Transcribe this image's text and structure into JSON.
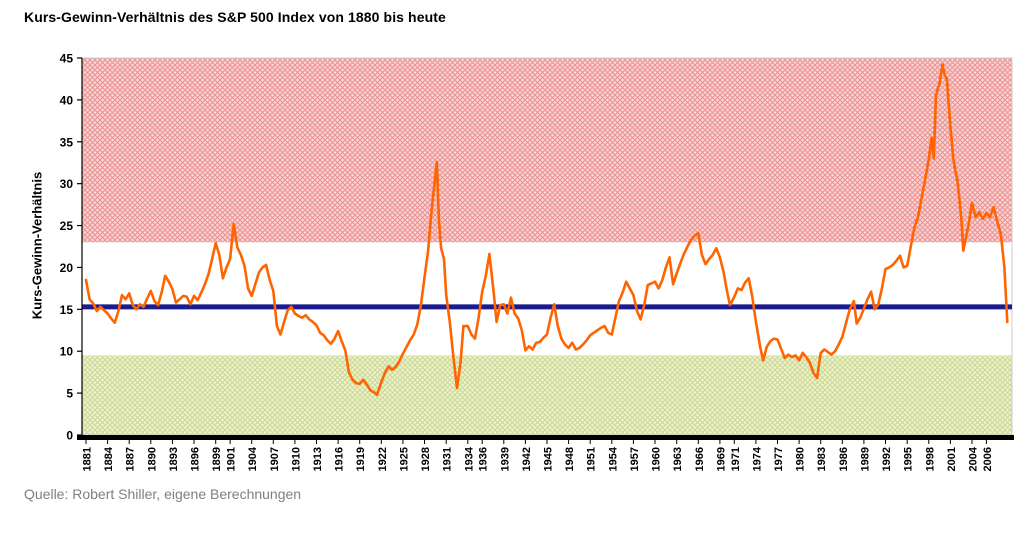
{
  "chart_data": {
    "type": "line",
    "title": "Kurs-Gewinn-Verhältnis des S&P 500 Index von 1880 bis heute",
    "ylabel": "Kurs-Gewinn-Verhältnis",
    "xlabel": "",
    "source": "Quelle: Robert Shiller, eigene Berechnungen",
    "ylim": [
      0,
      45
    ],
    "xlim": [
      1881,
      2009
    ],
    "yticks": [
      0,
      5,
      10,
      15,
      20,
      25,
      30,
      35,
      40,
      45
    ],
    "xtick_labels": [
      "1881",
      "1884",
      "1887",
      "1890",
      "1893",
      "1896",
      "1899",
      "1901",
      "1904",
      "1907",
      "1910",
      "1913",
      "1916",
      "1919",
      "1922",
      "1925",
      "1928",
      "1931",
      "1934",
      "1936",
      "1939",
      "1942",
      "1945",
      "1948",
      "1951",
      "1954",
      "1957",
      "1960",
      "1963",
      "1966",
      "1969",
      "1971",
      "1974",
      "1977",
      "1980",
      "1983",
      "1986",
      "1989",
      "1992",
      "1995",
      "1998",
      "2001",
      "2004",
      "2006"
    ],
    "grid": false,
    "legend": "none",
    "bands": [
      {
        "name": "upper-band",
        "from": 23,
        "to": 45,
        "bg": "#f9d6d6",
        "hatch": "#ec8f8f"
      },
      {
        "name": "lower-band",
        "from": 0,
        "to": 9.5,
        "bg": "#eef2cf",
        "hatch": "#ccd893"
      }
    ],
    "average_line": {
      "value": 15.3,
      "color": "#1b1b8e"
    },
    "series": [
      {
        "name": "Kurs-Gewinn-Verhältnis S&P 500",
        "color": "#ff6400",
        "points": [
          [
            1881,
            18.5
          ],
          [
            1881.5,
            16.2
          ],
          [
            1882,
            15.7
          ],
          [
            1882.5,
            14.8
          ],
          [
            1883,
            15.3
          ],
          [
            1883.5,
            14.9
          ],
          [
            1884,
            14.5
          ],
          [
            1884.5,
            13.9
          ],
          [
            1885,
            13.4
          ],
          [
            1885.5,
            14.8
          ],
          [
            1886,
            16.7
          ],
          [
            1886.5,
            16.2
          ],
          [
            1887,
            16.9
          ],
          [
            1887.5,
            15.5
          ],
          [
            1888,
            15.0
          ],
          [
            1888.5,
            15.6
          ],
          [
            1889,
            15.3
          ],
          [
            1889.5,
            16.3
          ],
          [
            1890,
            17.2
          ],
          [
            1890.5,
            16.0
          ],
          [
            1891,
            15.5
          ],
          [
            1891.5,
            17.0
          ],
          [
            1892,
            19.0
          ],
          [
            1892.5,
            18.3
          ],
          [
            1893,
            17.4
          ],
          [
            1893.5,
            15.8
          ],
          [
            1894,
            16.2
          ],
          [
            1894.5,
            16.6
          ],
          [
            1895,
            16.5
          ],
          [
            1895.5,
            15.6
          ],
          [
            1896,
            16.6
          ],
          [
            1896.5,
            16.1
          ],
          [
            1897,
            17.0
          ],
          [
            1897.5,
            18.0
          ],
          [
            1898,
            19.2
          ],
          [
            1898.5,
            21.0
          ],
          [
            1899,
            22.9
          ],
          [
            1899.5,
            21.5
          ],
          [
            1900,
            18.7
          ],
          [
            1900.5,
            20.0
          ],
          [
            1901,
            21.0
          ],
          [
            1901.5,
            25.2
          ],
          [
            1902,
            22.4
          ],
          [
            1902.5,
            21.5
          ],
          [
            1903,
            20.2
          ],
          [
            1903.5,
            17.5
          ],
          [
            1904,
            16.6
          ],
          [
            1904.5,
            18.0
          ],
          [
            1905,
            19.4
          ],
          [
            1905.5,
            20.0
          ],
          [
            1906,
            20.3
          ],
          [
            1906.5,
            18.5
          ],
          [
            1907,
            17.2
          ],
          [
            1907.5,
            13.0
          ],
          [
            1908,
            12.0
          ],
          [
            1908.5,
            13.5
          ],
          [
            1909,
            14.9
          ],
          [
            1909.5,
            15.3
          ],
          [
            1910,
            14.5
          ],
          [
            1910.5,
            14.2
          ],
          [
            1911,
            14.0
          ],
          [
            1911.5,
            14.3
          ],
          [
            1912,
            13.8
          ],
          [
            1912.5,
            13.5
          ],
          [
            1913,
            13.1
          ],
          [
            1913.5,
            12.2
          ],
          [
            1914,
            11.9
          ],
          [
            1914.5,
            11.3
          ],
          [
            1915,
            10.9
          ],
          [
            1915.5,
            11.5
          ],
          [
            1916,
            12.4
          ],
          [
            1916.5,
            11.2
          ],
          [
            1917,
            10.1
          ],
          [
            1917.5,
            7.5
          ],
          [
            1918,
            6.6
          ],
          [
            1918.5,
            6.2
          ],
          [
            1919,
            6.1
          ],
          [
            1919.5,
            6.6
          ],
          [
            1920,
            6.0
          ],
          [
            1920.5,
            5.3
          ],
          [
            1921,
            5.1
          ],
          [
            1921.4,
            4.8
          ],
          [
            1922,
            6.3
          ],
          [
            1922.5,
            7.4
          ],
          [
            1923,
            8.2
          ],
          [
            1923.5,
            7.8
          ],
          [
            1924,
            8.1
          ],
          [
            1924.5,
            8.8
          ],
          [
            1925,
            9.7
          ],
          [
            1925.5,
            10.5
          ],
          [
            1926,
            11.3
          ],
          [
            1926.5,
            12.0
          ],
          [
            1927,
            13.2
          ],
          [
            1927.5,
            15.5
          ],
          [
            1928,
            18.8
          ],
          [
            1928.5,
            22.0
          ],
          [
            1929,
            27.1
          ],
          [
            1929.7,
            32.6
          ],
          [
            1930,
            25.5
          ],
          [
            1930.3,
            22.3
          ],
          [
            1930.7,
            21.0
          ],
          [
            1931,
            16.7
          ],
          [
            1931.5,
            13.5
          ],
          [
            1932,
            9.3
          ],
          [
            1932.5,
            5.6
          ],
          [
            1933,
            8.7
          ],
          [
            1933.4,
            13.0
          ],
          [
            1934,
            13.0
          ],
          [
            1934.5,
            12.0
          ],
          [
            1935,
            11.5
          ],
          [
            1935.5,
            14.0
          ],
          [
            1936,
            17.1
          ],
          [
            1936.5,
            19.0
          ],
          [
            1937,
            21.6
          ],
          [
            1937.6,
            17.0
          ],
          [
            1938,
            13.5
          ],
          [
            1938.5,
            15.5
          ],
          [
            1939,
            15.6
          ],
          [
            1939.5,
            14.5
          ],
          [
            1940,
            16.4
          ],
          [
            1940.5,
            14.5
          ],
          [
            1941,
            13.9
          ],
          [
            1941.5,
            12.5
          ],
          [
            1942,
            10.1
          ],
          [
            1942.5,
            10.6
          ],
          [
            1943,
            10.2
          ],
          [
            1943.5,
            11.0
          ],
          [
            1944,
            11.1
          ],
          [
            1944.5,
            11.6
          ],
          [
            1945,
            12.0
          ],
          [
            1945.5,
            14.0
          ],
          [
            1946,
            15.6
          ],
          [
            1946.5,
            13.0
          ],
          [
            1947,
            11.5
          ],
          [
            1947.5,
            10.8
          ],
          [
            1948,
            10.4
          ],
          [
            1948.5,
            11.0
          ],
          [
            1949,
            10.2
          ],
          [
            1949.5,
            10.4
          ],
          [
            1950,
            10.8
          ],
          [
            1950.5,
            11.3
          ],
          [
            1951,
            11.9
          ],
          [
            1951.5,
            12.2
          ],
          [
            1952,
            12.5
          ],
          [
            1952.5,
            12.8
          ],
          [
            1953,
            13.0
          ],
          [
            1953.5,
            12.2
          ],
          [
            1954,
            12.0
          ],
          [
            1954.5,
            14.0
          ],
          [
            1955,
            16.0
          ],
          [
            1955.5,
            17.0
          ],
          [
            1956,
            18.3
          ],
          [
            1956.5,
            17.5
          ],
          [
            1957,
            16.7
          ],
          [
            1957.5,
            14.8
          ],
          [
            1958,
            13.8
          ],
          [
            1958.5,
            15.5
          ],
          [
            1959,
            17.9
          ],
          [
            1959.5,
            18.1
          ],
          [
            1960,
            18.3
          ],
          [
            1960.5,
            17.5
          ],
          [
            1961,
            18.5
          ],
          [
            1961.5,
            20.0
          ],
          [
            1962,
            21.2
          ],
          [
            1962.5,
            18.0
          ],
          [
            1963,
            19.3
          ],
          [
            1963.5,
            20.5
          ],
          [
            1964,
            21.6
          ],
          [
            1964.5,
            22.5
          ],
          [
            1965,
            23.3
          ],
          [
            1965.5,
            23.8
          ],
          [
            1966,
            24.1
          ],
          [
            1966.5,
            21.5
          ],
          [
            1967,
            20.4
          ],
          [
            1967.5,
            21.0
          ],
          [
            1968,
            21.5
          ],
          [
            1968.5,
            22.3
          ],
          [
            1969,
            21.2
          ],
          [
            1969.5,
            19.5
          ],
          [
            1970,
            17.1
          ],
          [
            1970.4,
            15.5
          ],
          [
            1971,
            16.5
          ],
          [
            1971.5,
            17.5
          ],
          [
            1972,
            17.3
          ],
          [
            1972.5,
            18.2
          ],
          [
            1973,
            18.7
          ],
          [
            1973.5,
            16.5
          ],
          [
            1974,
            13.5
          ],
          [
            1974.6,
            10.5
          ],
          [
            1975,
            8.9
          ],
          [
            1975.5,
            10.5
          ],
          [
            1976,
            11.2
          ],
          [
            1976.5,
            11.5
          ],
          [
            1977,
            11.4
          ],
          [
            1977.5,
            10.3
          ],
          [
            1978,
            9.2
          ],
          [
            1978.5,
            9.6
          ],
          [
            1979,
            9.3
          ],
          [
            1979.5,
            9.5
          ],
          [
            1980,
            8.9
          ],
          [
            1980.5,
            9.8
          ],
          [
            1981,
            9.3
          ],
          [
            1981.5,
            8.6
          ],
          [
            1982,
            7.4
          ],
          [
            1982.5,
            6.8
          ],
          [
            1983,
            9.8
          ],
          [
            1983.5,
            10.2
          ],
          [
            1984,
            9.9
          ],
          [
            1984.5,
            9.6
          ],
          [
            1985,
            10.0
          ],
          [
            1985.5,
            10.8
          ],
          [
            1986,
            11.7
          ],
          [
            1986.5,
            13.3
          ],
          [
            1987,
            14.9
          ],
          [
            1987.6,
            16.0
          ],
          [
            1988,
            13.3
          ],
          [
            1988.5,
            14.0
          ],
          [
            1989,
            15.1
          ],
          [
            1989.5,
            16.2
          ],
          [
            1990,
            17.1
          ],
          [
            1990.5,
            15.0
          ],
          [
            1991,
            15.6
          ],
          [
            1991.5,
            17.5
          ],
          [
            1992,
            19.8
          ],
          [
            1992.5,
            20.0
          ],
          [
            1993,
            20.3
          ],
          [
            1993.5,
            20.8
          ],
          [
            1994,
            21.4
          ],
          [
            1994.5,
            20.0
          ],
          [
            1995,
            20.2
          ],
          [
            1995.5,
            22.5
          ],
          [
            1996,
            24.8
          ],
          [
            1996.5,
            26.0
          ],
          [
            1997,
            28.3
          ],
          [
            1997.5,
            30.5
          ],
          [
            1998,
            32.9
          ],
          [
            1998.4,
            35.5
          ],
          [
            1998.7,
            33.0
          ],
          [
            1999,
            40.6
          ],
          [
            1999.5,
            42.0
          ],
          [
            1999.9,
            44.2
          ],
          [
            2000.2,
            43.0
          ],
          [
            2000.5,
            42.5
          ],
          [
            2001,
            36.8
          ],
          [
            2001.4,
            33.0
          ],
          [
            2001.7,
            31.5
          ],
          [
            2002,
            30.3
          ],
          [
            2002.5,
            26.0
          ],
          [
            2002.8,
            22.0
          ],
          [
            2003,
            22.9
          ],
          [
            2003.5,
            25.0
          ],
          [
            2004,
            27.7
          ],
          [
            2004.5,
            26.0
          ],
          [
            2005,
            26.6
          ],
          [
            2005.5,
            25.8
          ],
          [
            2006,
            26.5
          ],
          [
            2006.5,
            26.0
          ],
          [
            2007,
            27.2
          ],
          [
            2007.5,
            25.5
          ],
          [
            2008,
            24.0
          ],
          [
            2008.5,
            20.0
          ],
          [
            2008.9,
            13.5
          ]
        ]
      }
    ]
  }
}
